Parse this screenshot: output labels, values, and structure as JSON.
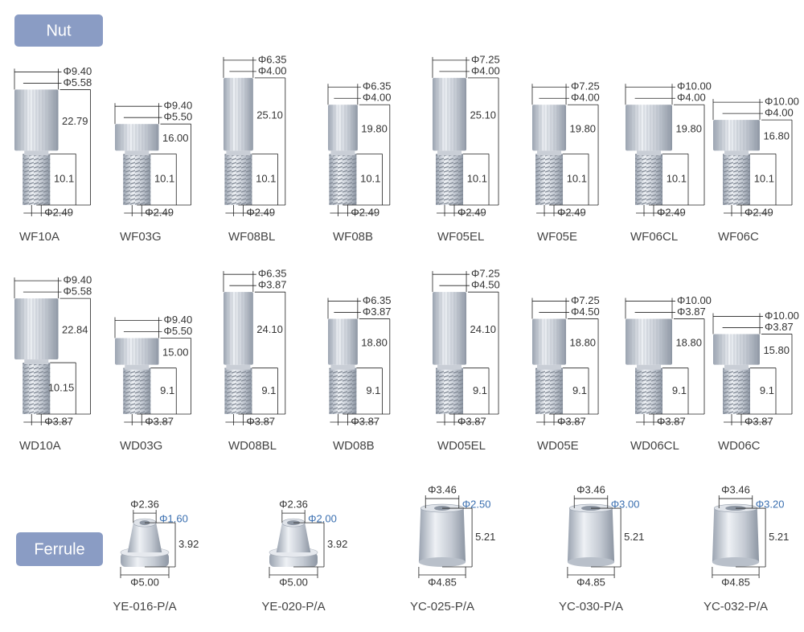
{
  "nut": {
    "title": "Nut",
    "rows": [
      [
        {
          "name": "WF10A",
          "od": "Φ9.40",
          "id": "Φ5.58",
          "height": "22.79",
          "thread": "10.1",
          "bore": "Φ2.49"
        },
        {
          "name": "WF03G",
          "od": "Φ9.40",
          "id": "Φ5.50",
          "height": "16.00",
          "thread": "10.1",
          "bore": "Φ2.49"
        },
        {
          "name": "WF08BL",
          "od": "Φ6.35",
          "id": "Φ4.00",
          "height": "25.10",
          "thread": "10.1",
          "bore": "Φ2.49"
        },
        {
          "name": "WF08B",
          "od": "Φ6.35",
          "id": "Φ4.00",
          "height": "19.80",
          "thread": "10.1",
          "bore": "Φ2.49"
        },
        {
          "name": "WF05EL",
          "od": "Φ7.25",
          "id": "Φ4.00",
          "height": "25.10",
          "thread": "10.1",
          "bore": "Φ2.49"
        },
        {
          "name": "WF05E",
          "od": "Φ7.25",
          "id": "Φ4.00",
          "height": "19.80",
          "thread": "10.1",
          "bore": "Φ2.49"
        },
        {
          "name": "WF06CL",
          "od": "Φ10.00",
          "id": "Φ4.00",
          "height": "19.80",
          "thread": "10.1",
          "bore": "Φ2.49"
        },
        {
          "name": "WF06C",
          "od": "Φ10.00",
          "id": "Φ4.00",
          "height": "16.80",
          "thread": "10.1",
          "bore": "Φ2.49"
        }
      ],
      [
        {
          "name": "WD10A",
          "od": "Φ9.40",
          "id": "Φ5.58",
          "height": "22.84",
          "thread": "10.15",
          "bore": "Φ3.87"
        },
        {
          "name": "WD03G",
          "od": "Φ9.40",
          "id": "Φ5.50",
          "height": "15.00",
          "thread": "9.1",
          "bore": "Φ3.87"
        },
        {
          "name": "WD08BL",
          "od": "Φ6.35",
          "id": "Φ3.87",
          "height": "24.10",
          "thread": "9.1",
          "bore": "Φ3.87"
        },
        {
          "name": "WD08B",
          "od": "Φ6.35",
          "id": "Φ3.87",
          "height": "18.80",
          "thread": "9.1",
          "bore": "Φ3.87"
        },
        {
          "name": "WD05EL",
          "od": "Φ7.25",
          "id": "Φ4.50",
          "height": "24.10",
          "thread": "9.1",
          "bore": "Φ3.87"
        },
        {
          "name": "WD05E",
          "od": "Φ7.25",
          "id": "Φ4.50",
          "height": "18.80",
          "thread": "9.1",
          "bore": "Φ3.87"
        },
        {
          "name": "WD06CL",
          "od": "Φ10.00",
          "id": "Φ3.87",
          "height": "18.80",
          "thread": "9.1",
          "bore": "Φ3.87"
        },
        {
          "name": "WD06C",
          "od": "Φ10.00",
          "id": "Φ3.87",
          "height": "15.80",
          "thread": "9.1",
          "bore": "Φ3.87"
        }
      ]
    ]
  },
  "ferrule": {
    "title": "Ferrule",
    "items": [
      {
        "name": "YE-016-P/A",
        "od_top": "Φ2.36",
        "id": "Φ1.60",
        "height": "3.92",
        "od_base": "Φ5.00"
      },
      {
        "name": "YE-020-P/A",
        "od_top": "Φ2.36",
        "id": "Φ2.00",
        "height": "3.92",
        "od_base": "Φ5.00"
      },
      {
        "name": "YC-025-P/A",
        "od_top": "Φ3.46",
        "id": "Φ2.50",
        "height": "5.21",
        "od_base": "Φ4.85"
      },
      {
        "name": "YC-030-P/A",
        "od_top": "Φ3.46",
        "id": "Φ3.00",
        "height": "5.21",
        "od_base": "Φ4.85"
      },
      {
        "name": "YC-032-P/A",
        "od_top": "Φ3.46",
        "id": "Φ3.20",
        "height": "5.21",
        "od_base": "Φ4.85"
      }
    ]
  }
}
